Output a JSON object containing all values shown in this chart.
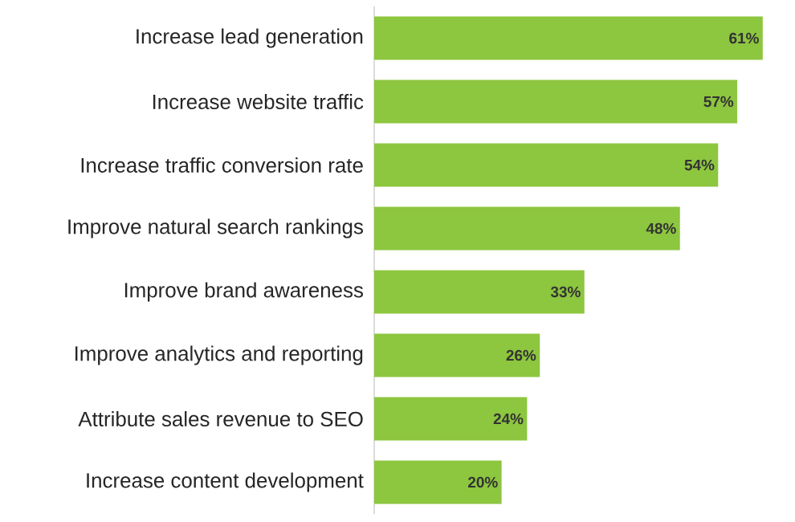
{
  "chart_data": {
    "type": "bar",
    "orientation": "horizontal",
    "categories": [
      "Increase lead generation",
      "Increase website traffic",
      "Increase traffic conversion rate",
      "Improve natural search rankings",
      "Improve brand awareness",
      "Improve analytics and reporting",
      "Attribute sales revenue to SEO",
      "Increase content development"
    ],
    "values": [
      61,
      57,
      54,
      48,
      33,
      26,
      24,
      20
    ],
    "value_labels": [
      "61%",
      "57%",
      "54%",
      "48%",
      "33%",
      "26%",
      "24%",
      "20%"
    ],
    "color": "#8dc63f"
  }
}
